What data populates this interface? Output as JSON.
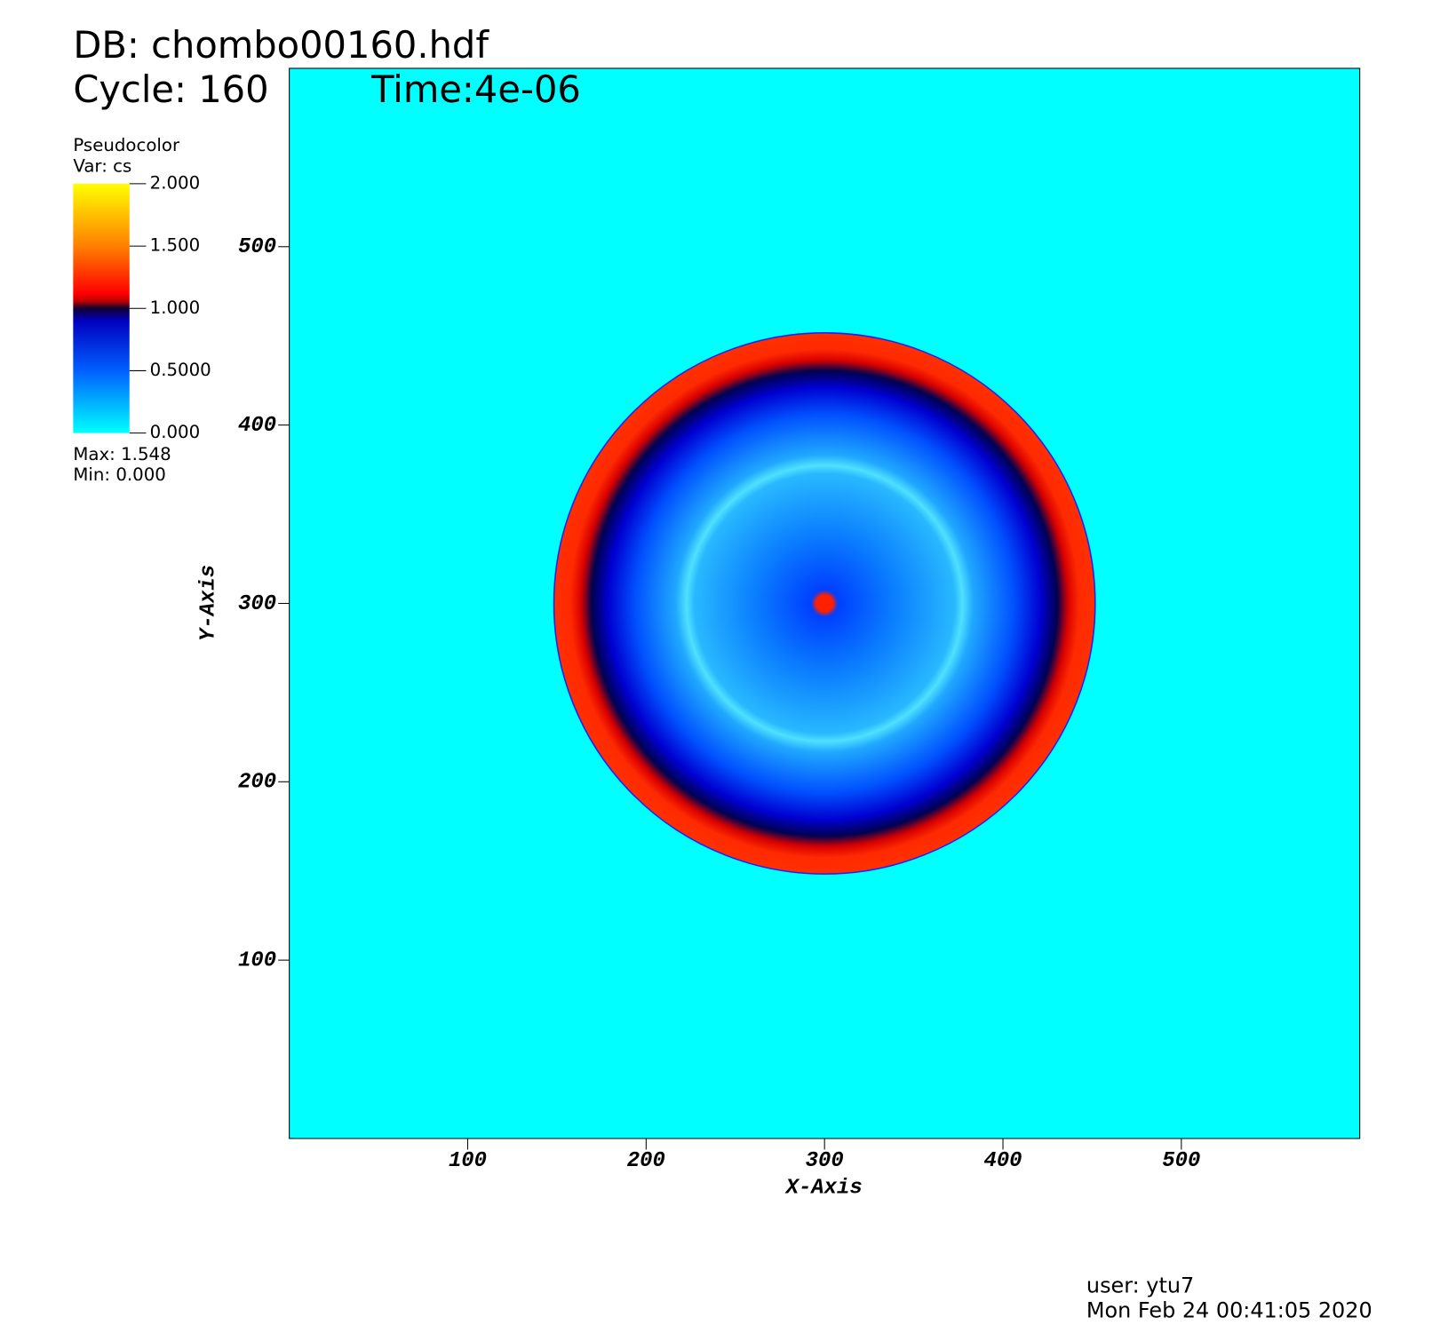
{
  "chart_data": {
    "type": "pseudocolor",
    "title": "DB: chombo00160.hdf",
    "cycle_label": "Cycle: 160",
    "time_label": "Time:4e-06",
    "x_label": "X-Axis",
    "y_label": "Y-Axis",
    "xlim": [
      0,
      600
    ],
    "ylim": [
      0,
      600
    ],
    "xticks": [
      100,
      200,
      300,
      400,
      500
    ],
    "yticks": [
      100,
      200,
      300,
      400,
      500
    ],
    "legend": {
      "title": "Pseudocolor",
      "variable": "Var: cs",
      "lim": [
        0,
        2
      ],
      "ticks": [
        {
          "value": 2,
          "label": "2.000"
        },
        {
          "value": 1.5,
          "label": "1.500"
        },
        {
          "value": 1,
          "label": "1.000"
        },
        {
          "value": 0.5,
          "label": "0.5000"
        },
        {
          "value": 0,
          "label": "0.000"
        }
      ],
      "max_label": "Max:  1.548",
      "min_label": "Min:  0.000"
    },
    "background_color": "#00ffff",
    "user": "user: ytu7",
    "date": "Mon Feb 24 00:41:05 2020"
  }
}
